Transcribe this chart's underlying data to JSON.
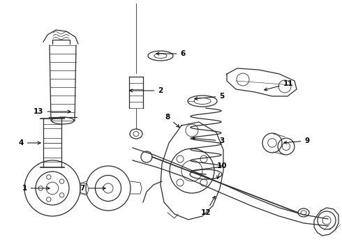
{
  "background_color": "#ffffff",
  "line_color": "#2a2a2a",
  "label_color": "#000000",
  "figsize": [
    4.9,
    3.6
  ],
  "dpi": 100
}
